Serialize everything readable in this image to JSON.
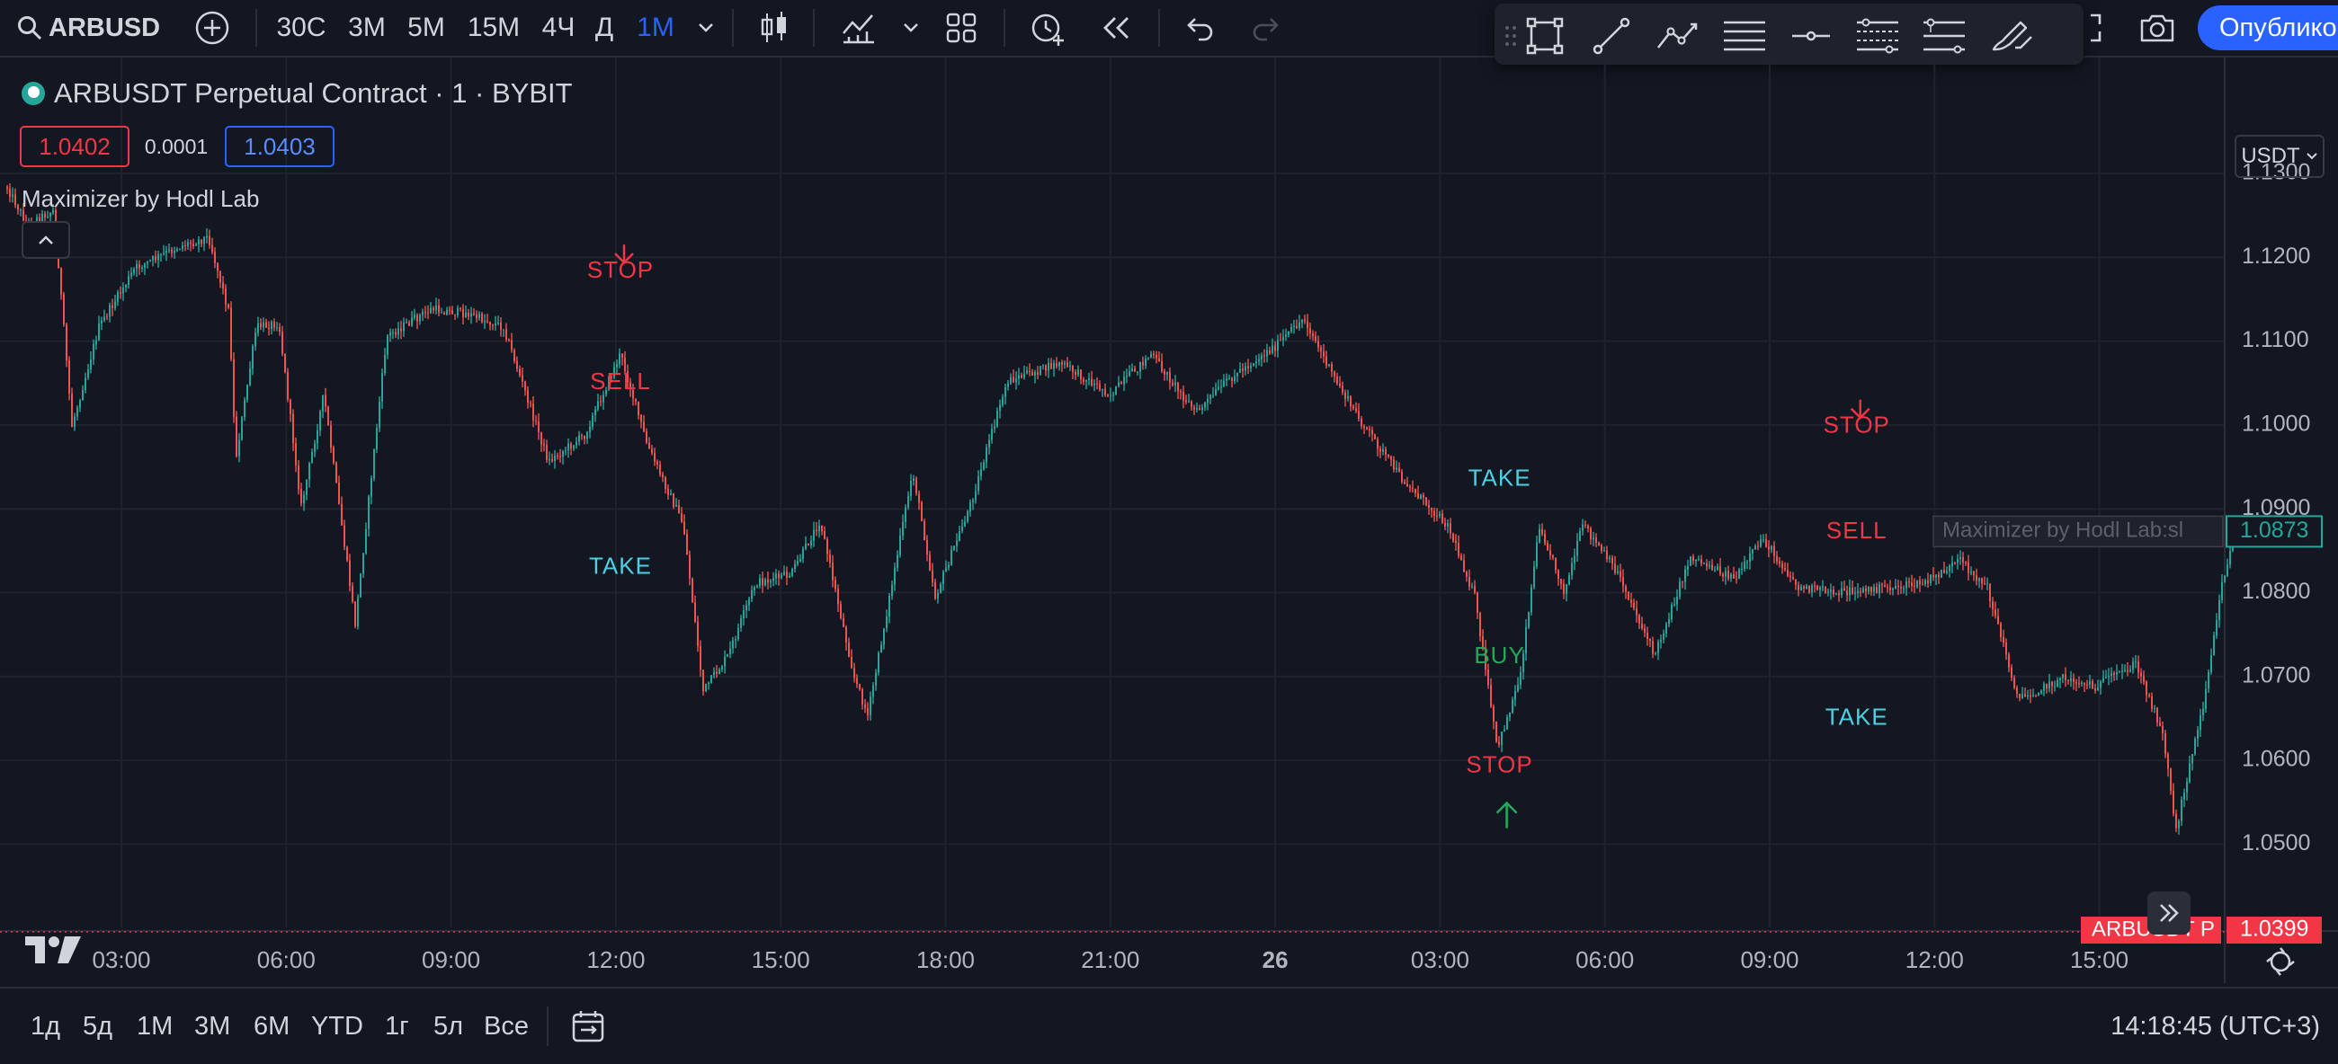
{
  "toolbar": {
    "symbol": "ARBUSD",
    "intervals": [
      "30С",
      "3М",
      "5М",
      "15М",
      "4Ч",
      "Д",
      "1М"
    ],
    "selected_interval": "1М",
    "publish_label": "Опублико"
  },
  "legend": {
    "title": "ARBUSDT Perpetual Contract · 1 · BYBIT",
    "bid": "1.0402",
    "spread": "0.0001",
    "ask": "1.0403",
    "indicator": "Maximizer by Hodl Lab"
  },
  "currency": "USDT",
  "price_axis": {
    "ticks": [
      "1.1300",
      "1.1200",
      "1.1100",
      "1.1000",
      "1.0900",
      "1.0800",
      "1.0700",
      "1.0600",
      "1.0500"
    ],
    "indicator_label": "Maximizer by Hodl Lab:sl",
    "indicator_value": "1.0873",
    "last_symbol": "ARBUSDT P",
    "last_price": "1.0399"
  },
  "time_axis": {
    "ticks": [
      "03:00",
      "06:00",
      "09:00",
      "12:00",
      "15:00",
      "18:00",
      "21:00",
      "26",
      "03:00",
      "06:00",
      "09:00",
      "12:00",
      "15:00"
    ]
  },
  "signals": [
    {
      "label": "STOP",
      "price": 1.1183,
      "kind": "stop",
      "arrow": "down",
      "time": "12:05"
    },
    {
      "label": "SELL",
      "price": 1.105,
      "kind": "sell",
      "time": "12:05"
    },
    {
      "label": "TAKE",
      "price": 1.083,
      "kind": "take",
      "time": "12:05"
    },
    {
      "label": "TAKE",
      "price": 1.0935,
      "kind": "take",
      "time": "04:05"
    },
    {
      "label": "BUY",
      "price": 1.0723,
      "kind": "buy",
      "time": "04:05"
    },
    {
      "label": "STOP",
      "price": 1.0593,
      "kind": "stop",
      "arrow": "up",
      "time": "04:05"
    },
    {
      "label": "STOP",
      "price": 1.0998,
      "kind": "stop",
      "arrow": "down",
      "time": "10:35"
    },
    {
      "label": "SELL",
      "price": 1.0872,
      "kind": "sell",
      "time": "10:35"
    },
    {
      "label": "TAKE",
      "price": 1.065,
      "kind": "take",
      "time": "10:35"
    }
  ],
  "colors": {
    "background": "#131722",
    "up": "#26a69a",
    "down": "#ef5350",
    "stop": "#f23645",
    "take": "#4dd0e1",
    "buy": "#26a65b",
    "accent": "#2962ff"
  },
  "ranges": [
    "1д",
    "5д",
    "1М",
    "3М",
    "6М",
    "YTD",
    "1г",
    "5л",
    "Все"
  ],
  "clock": "14:18:45 (UTC+3)"
}
